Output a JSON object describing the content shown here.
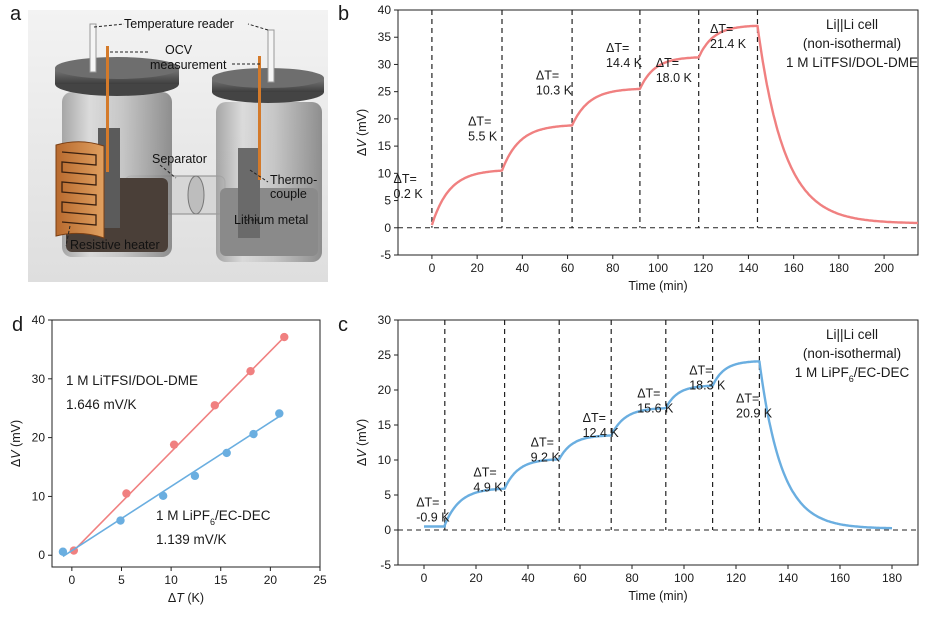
{
  "panel_letters": [
    "a",
    "b",
    "c",
    "d"
  ],
  "panel_a": {
    "labels": {
      "temperature_reader": "Temperature reader",
      "ocv_1": "OCV",
      "ocv_2": "measurement",
      "separator": "Separator",
      "thermocouple_1": "Thermo-",
      "thermocouple_2": "couple",
      "lithium_metal": "Lithium metal",
      "resistive_heater": "Resistive heater"
    }
  },
  "chart_data": [
    {
      "id": "b",
      "type": "line",
      "xlabel": "Time (min)",
      "ylabel": "ΔV (mV)",
      "xlim": [
        -15,
        215
      ],
      "ylim": [
        -5,
        40
      ],
      "xticks": [
        0,
        20,
        40,
        60,
        80,
        100,
        120,
        140,
        160,
        180,
        200
      ],
      "yticks": [
        -5,
        0,
        5,
        10,
        15,
        20,
        25,
        30,
        35,
        40
      ],
      "color": "#f08080",
      "legend": [
        "Li||Li cell",
        "(non-isothermal)",
        "1 M LiTFSI/DOL-DME"
      ],
      "steps": [
        {
          "t_start": 0,
          "t_end": 31,
          "v_start": 0.5,
          "v_end": 10.5
        },
        {
          "t_start": 31,
          "t_end": 62,
          "v_start": 10.5,
          "v_end": 18.8
        },
        {
          "t_start": 62,
          "t_end": 92,
          "v_start": 18.8,
          "v_end": 25.5
        },
        {
          "t_start": 92,
          "t_end": 118,
          "v_start": 25.5,
          "v_end": 31.3
        },
        {
          "t_start": 118,
          "t_end": 144,
          "v_start": 31.3,
          "v_end": 37.1
        }
      ],
      "decay": {
        "t_start": 144,
        "t_end": 215,
        "v_end": 0.8
      },
      "dashed_x": [
        0,
        31,
        62,
        92,
        118,
        144
      ],
      "annotations": [
        {
          "l1": "ΔT=",
          "l2": "0.2 K",
          "t": -17,
          "v": 5.5
        },
        {
          "l1": "ΔT=",
          "l2": "5.5 K",
          "t": 16,
          "v": 16
        },
        {
          "l1": "ΔT=",
          "l2": "10.3 K",
          "t": 46,
          "v": 24.5
        },
        {
          "l1": "ΔT=",
          "l2": "14.4 K",
          "t": 77,
          "v": 29.5
        },
        {
          "l1": "ΔT=",
          "l2": "18.0 K",
          "t": 99,
          "v": 26.8
        },
        {
          "l1": "ΔT=",
          "l2": "21.4 K",
          "t": 123,
          "v": 33
        }
      ]
    },
    {
      "id": "c",
      "type": "line",
      "xlabel": "Time (min)",
      "ylabel": "ΔV (mV)",
      "xlim": [
        -10,
        190
      ],
      "ylim": [
        -5,
        30
      ],
      "xticks": [
        0,
        20,
        40,
        60,
        80,
        100,
        120,
        140,
        160,
        180
      ],
      "yticks": [
        -5,
        0,
        5,
        10,
        15,
        20,
        25,
        30
      ],
      "color": "#6aaee0",
      "legend": [
        "Li||Li cell",
        "(non-isothermal)",
        "1 M LiPF6/EC-DEC"
      ],
      "pre": {
        "t_start": 0,
        "t_end": 8,
        "v": 0.5
      },
      "steps": [
        {
          "t_start": 8,
          "t_end": 31,
          "v_start": 0.7,
          "v_end": 5.9
        },
        {
          "t_start": 31,
          "t_end": 52,
          "v_start": 5.9,
          "v_end": 10.1
        },
        {
          "t_start": 52,
          "t_end": 72,
          "v_start": 10.1,
          "v_end": 13.5
        },
        {
          "t_start": 72,
          "t_end": 93,
          "v_start": 13.5,
          "v_end": 17.4
        },
        {
          "t_start": 93,
          "t_end": 111,
          "v_start": 17.4,
          "v_end": 20.6
        },
        {
          "t_start": 111,
          "t_end": 129,
          "v_start": 20.6,
          "v_end": 24.1
        }
      ],
      "decay": {
        "t_start": 129,
        "t_end": 180,
        "v_end": 0.2
      },
      "dashed_x": [
        8,
        31,
        52,
        72,
        93,
        111,
        129
      ],
      "annotations": [
        {
          "l1": "ΔT=",
          "l2": "-0.9 K",
          "t": -3,
          "v": 1.2
        },
        {
          "l1": "ΔT=",
          "l2": "4.9 K",
          "t": 19,
          "v": 5.5
        },
        {
          "l1": "ΔT=",
          "l2": "9.2 K",
          "t": 41,
          "v": 9.8
        },
        {
          "l1": "ΔT=",
          "l2": "12.4 K",
          "t": 61,
          "v": 13.3
        },
        {
          "l1": "ΔT=",
          "l2": "15.6 K",
          "t": 82,
          "v": 16.8
        },
        {
          "l1": "ΔT=",
          "l2": "18.3 K",
          "t": 102,
          "v": 20.1
        },
        {
          "l1": "ΔT=",
          "l2": "20.9 K",
          "t": 120,
          "v": 16.1
        }
      ]
    },
    {
      "id": "d",
      "type": "scatter",
      "xlabel": "ΔT (K)",
      "ylabel": "ΔV (mV)",
      "xlim": [
        -2,
        25
      ],
      "ylim": [
        -2,
        40
      ],
      "xticks": [
        0,
        5,
        10,
        15,
        20,
        25
      ],
      "yticks": [
        0,
        10,
        20,
        30,
        40
      ],
      "series": [
        {
          "name_1": "1 M LiTFSI/DOL-DME",
          "name_2": "1.646 mV/K",
          "color": "#f08080",
          "x": [
            0.2,
            5.5,
            10.3,
            14.4,
            18.0,
            21.4
          ],
          "y": [
            0.8,
            10.5,
            18.8,
            25.5,
            31.3,
            37.1
          ],
          "fit": {
            "x0": 0.2,
            "x1": 21.4,
            "y0": 0.8,
            "y1": 37.1
          }
        },
        {
          "name_1": "1 M LiPF6/EC-DEC",
          "name_2": "1.139 mV/K",
          "color": "#6aaee0",
          "x": [
            -0.9,
            4.9,
            9.2,
            12.4,
            15.6,
            18.3,
            20.9
          ],
          "y": [
            0.6,
            5.9,
            10.1,
            13.5,
            17.4,
            20.6,
            24.1
          ],
          "fit": {
            "x0": -0.9,
            "x1": 20.9,
            "y0": -0.2,
            "y1": 23.6
          }
        }
      ]
    }
  ]
}
